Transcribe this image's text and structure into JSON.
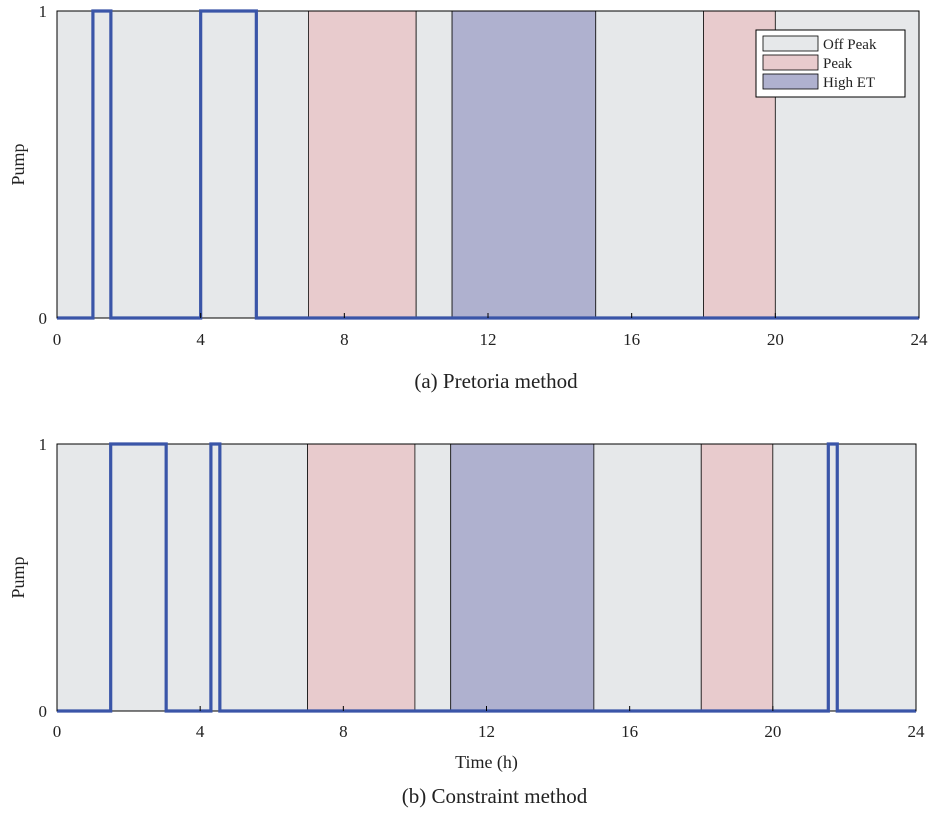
{
  "colors": {
    "off_peak": "#e6e8ea",
    "peak": "#e8cbcd",
    "high_et": "#afb1cf",
    "signal": "#3a55a8",
    "frame": "#000000"
  },
  "legend": {
    "placement": "top-right",
    "items": [
      {
        "key": "off_peak",
        "label": "Off Peak"
      },
      {
        "key": "peak",
        "label": "Peak"
      },
      {
        "key": "high_et",
        "label": "High ET"
      }
    ]
  },
  "chart_data": [
    {
      "type": "line",
      "subtype": "step",
      "caption": "(a) Pretoria method",
      "xlabel": "",
      "ylabel": "Pump",
      "xlim": [
        0,
        24
      ],
      "ylim": [
        0,
        1
      ],
      "xticks": [
        0,
        4,
        8,
        12,
        16,
        20,
        24
      ],
      "yticks": [
        0,
        1
      ],
      "bands": [
        {
          "start": 0,
          "end": 7,
          "period": "off_peak"
        },
        {
          "start": 7,
          "end": 10,
          "period": "peak"
        },
        {
          "start": 10,
          "end": 11,
          "period": "off_peak"
        },
        {
          "start": 11,
          "end": 15,
          "period": "high_et"
        },
        {
          "start": 15,
          "end": 18,
          "period": "off_peak"
        },
        {
          "start": 18,
          "end": 20,
          "period": "peak"
        },
        {
          "start": 20,
          "end": 24,
          "period": "off_peak"
        }
      ],
      "pump_on_intervals": [
        [
          1.0,
          1.5
        ],
        [
          4.0,
          5.55
        ]
      ]
    },
    {
      "type": "line",
      "subtype": "step",
      "caption": "(b) Constraint method",
      "xlabel": "Time (h)",
      "ylabel": "Pump",
      "xlim": [
        0,
        24
      ],
      "ylim": [
        0,
        1
      ],
      "xticks": [
        0,
        4,
        8,
        12,
        16,
        20,
        24
      ],
      "yticks": [
        0,
        1
      ],
      "bands": [
        {
          "start": 0,
          "end": 7,
          "period": "off_peak"
        },
        {
          "start": 7,
          "end": 10,
          "period": "peak"
        },
        {
          "start": 10,
          "end": 11,
          "period": "off_peak"
        },
        {
          "start": 11,
          "end": 15,
          "period": "high_et"
        },
        {
          "start": 15,
          "end": 18,
          "period": "off_peak"
        },
        {
          "start": 18,
          "end": 20,
          "period": "peak"
        },
        {
          "start": 20,
          "end": 24,
          "period": "off_peak"
        }
      ],
      "pump_on_intervals": [
        [
          1.5,
          3.05
        ],
        [
          4.3,
          4.55
        ],
        [
          21.55,
          21.8
        ]
      ]
    }
  ]
}
